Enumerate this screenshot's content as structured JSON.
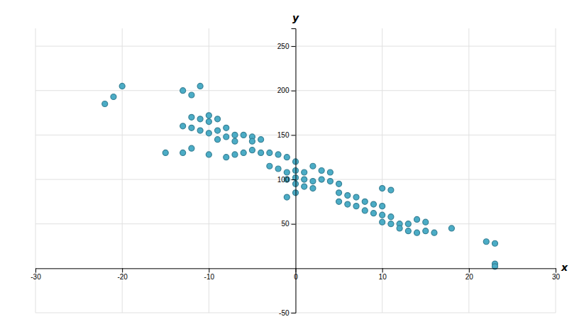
{
  "chart_data": {
    "type": "scatter",
    "x": [
      -22,
      -21,
      -20,
      -13,
      -12,
      -11,
      -12,
      -11,
      -10,
      -10,
      -9,
      -13,
      -12,
      -11,
      -10,
      -9,
      -8,
      -15,
      -13,
      -12,
      -10,
      -9,
      -8,
      -7,
      -7,
      -6,
      -5,
      -5,
      -4,
      -8,
      -7,
      -6,
      -5,
      -4,
      -3,
      -2,
      -1,
      0,
      -3,
      -2,
      -1,
      0,
      1,
      -1,
      0,
      1,
      2,
      0,
      1,
      2,
      -1,
      0,
      2,
      3,
      4,
      3,
      4,
      5,
      5,
      6,
      7,
      5,
      6,
      7,
      8,
      9,
      10,
      8,
      9,
      10,
      11,
      10,
      11,
      12,
      13,
      12,
      13,
      14,
      10,
      11,
      14,
      15,
      15,
      16,
      18,
      22,
      23,
      23,
      23
    ],
    "values": [
      185,
      193,
      205,
      200,
      195,
      205,
      170,
      168,
      172,
      165,
      168,
      160,
      158,
      155,
      152,
      155,
      158,
      130,
      130,
      135,
      128,
      145,
      148,
      150,
      143,
      150,
      148,
      143,
      145,
      125,
      128,
      130,
      133,
      130,
      130,
      128,
      125,
      120,
      115,
      112,
      108,
      110,
      108,
      100,
      102,
      100,
      98,
      95,
      92,
      90,
      80,
      85,
      115,
      110,
      108,
      100,
      98,
      95,
      85,
      82,
      80,
      75,
      72,
      70,
      75,
      72,
      70,
      65,
      62,
      60,
      58,
      52,
      50,
      50,
      50,
      45,
      42,
      40,
      90,
      88,
      55,
      52,
      42,
      40,
      45,
      30,
      28,
      5,
      2
    ],
    "color": "#4BACC6",
    "xlabel": "x",
    "ylabel": "y",
    "xlim": [
      -30,
      30
    ],
    "ylim": [
      -50,
      270
    ],
    "xticks": [
      -30,
      -20,
      -10,
      0,
      10,
      20,
      30
    ],
    "yticks": [
      -50,
      50,
      100,
      150,
      200,
      250
    ],
    "grid": true
  }
}
